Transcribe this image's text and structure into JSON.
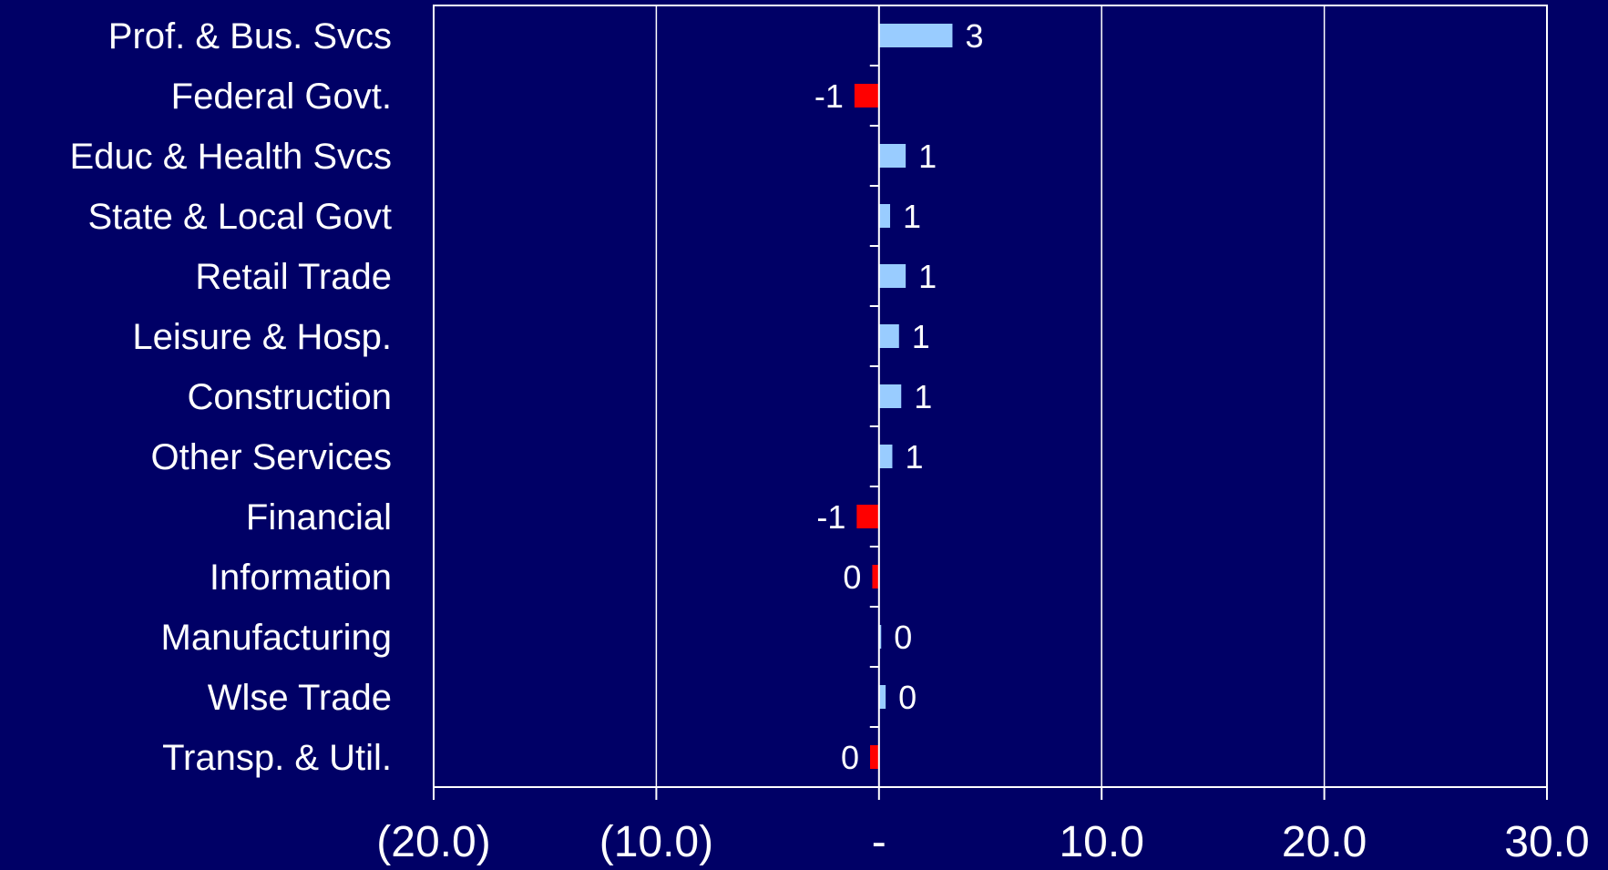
{
  "chart_data": {
    "type": "bar",
    "orientation": "horizontal",
    "categories": [
      "Prof. & Bus. Svcs",
      "Federal Govt.",
      "Educ & Health Svcs",
      "State & Local Govt",
      "Retail Trade",
      "Leisure & Hosp.",
      "Construction",
      "Other Services",
      "Financial",
      "Information",
      "Manufacturing",
      "Wlse Trade",
      "Transp. & Util."
    ],
    "values": [
      3.3,
      -1.1,
      1.2,
      0.5,
      1.2,
      0.9,
      1.0,
      0.6,
      -1.0,
      -0.3,
      0.1,
      0.3,
      -0.4
    ],
    "data_labels": [
      "3",
      "-1",
      "1",
      "1",
      "1",
      "1",
      "1",
      "1",
      "-1",
      "0",
      "0",
      "0",
      "0"
    ],
    "xlim": [
      -20,
      30
    ],
    "x_ticks": [
      -20,
      -10,
      0,
      10,
      20,
      30
    ],
    "x_tick_labels": [
      "(20.0)",
      "(10.0)",
      "-",
      "10.0",
      "20.0",
      "30.0"
    ],
    "grid": "vertical gridlines on",
    "legend": "none",
    "colors": {
      "background": "#000066",
      "positive": "#99CCFF",
      "negative": "#FF0000",
      "axis": "#FFFFFF",
      "text": "#FFFFFF"
    }
  }
}
